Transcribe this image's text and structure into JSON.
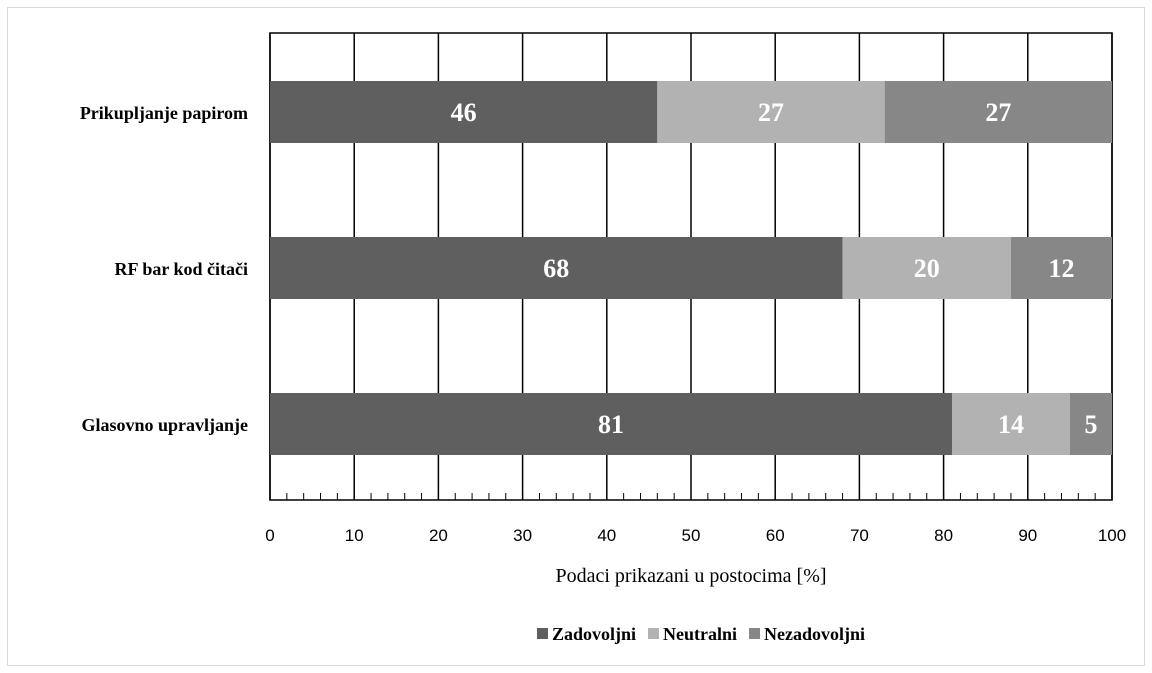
{
  "chart_data": {
    "type": "bar",
    "orientation": "horizontal",
    "stacked": true,
    "categories": [
      "Prikupljanje papirom",
      "RF bar kod čitači",
      "Glasovno upravljanje"
    ],
    "series": [
      {
        "name": "Zadovoljni",
        "values": [
          46,
          68,
          81
        ],
        "color": "#5f5f5f"
      },
      {
        "name": "Neutralni",
        "values": [
          27,
          20,
          14
        ],
        "color": "#b2b2b2"
      },
      {
        "name": "Nezadovoljni",
        "values": [
          27,
          12,
          5
        ],
        "color": "#878787"
      }
    ],
    "xlim": [
      0,
      100
    ],
    "xticks": [
      "0",
      "10",
      "20",
      "30",
      "40",
      "50",
      "60",
      "70",
      "80",
      "90",
      "100"
    ],
    "xlabel": "Podaci prikazani u postocima [%]",
    "ylabel": "",
    "title": "",
    "grid": true,
    "legend": "bottom"
  }
}
